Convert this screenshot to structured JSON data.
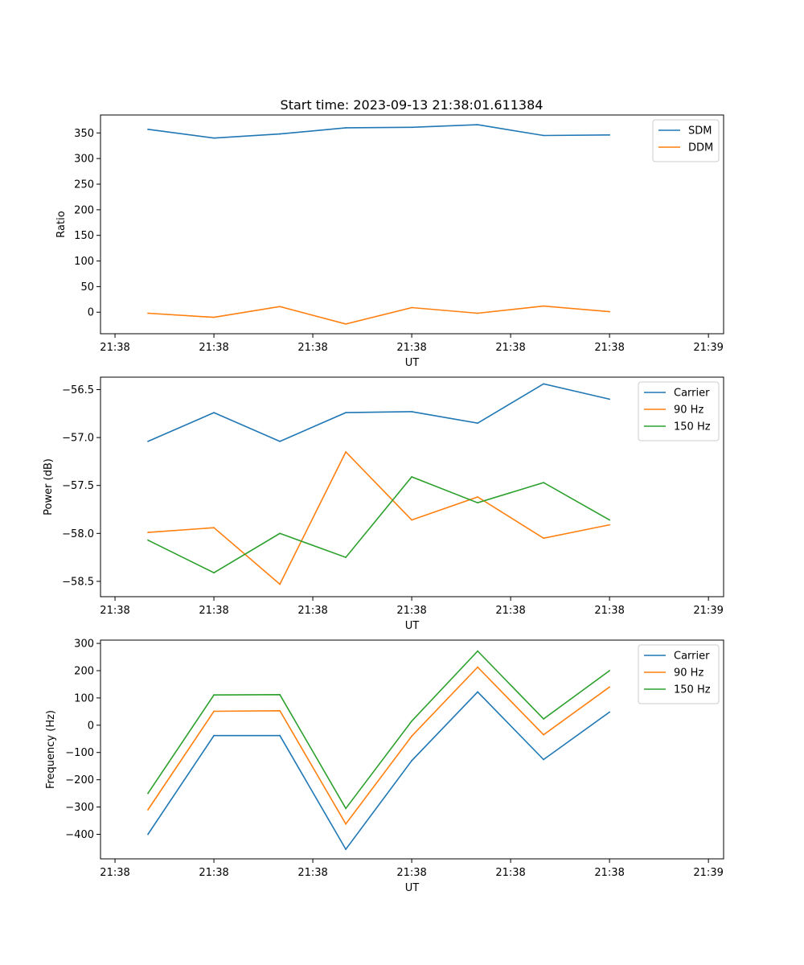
{
  "chart_data": [
    {
      "type": "line",
      "title": "Start time: 2023-09-13 21:38:01.611384",
      "xlabel": "UT",
      "ylabel": "Ratio",
      "x": [
        1,
        2,
        3,
        4,
        5,
        6,
        7,
        8
      ],
      "xlim": [
        0.28,
        9.73
      ],
      "x_ticks": [
        0.5,
        2.0,
        3.5,
        5.0,
        6.5,
        8.0,
        9.5
      ],
      "x_tick_labels": [
        "21:38",
        "21:38",
        "21:38",
        "21:38",
        "21:38",
        "21:38",
        "21:39"
      ],
      "ylim": [
        -42,
        385
      ],
      "y_ticks": [
        0,
        50,
        100,
        150,
        200,
        250,
        300,
        350
      ],
      "y_tick_labels": [
        "0",
        "50",
        "100",
        "150",
        "200",
        "250",
        "300",
        "350"
      ],
      "legend_position": "top-right",
      "series": [
        {
          "name": "SDM",
          "color": "#1f77b4",
          "values": [
            357,
            340,
            348,
            360,
            361,
            366,
            345,
            346
          ]
        },
        {
          "name": "DDM",
          "color": "#ff7f0e",
          "values": [
            -2,
            -10,
            11,
            -23,
            9,
            -2,
            12,
            1
          ]
        }
      ]
    },
    {
      "type": "line",
      "title": "",
      "xlabel": "UT",
      "ylabel": "Power (dB)",
      "x": [
        1,
        2,
        3,
        4,
        5,
        6,
        7,
        8
      ],
      "xlim": [
        0.28,
        9.73
      ],
      "x_ticks": [
        0.5,
        2.0,
        3.5,
        5.0,
        6.5,
        8.0,
        9.5
      ],
      "x_tick_labels": [
        "21:38",
        "21:38",
        "21:38",
        "21:38",
        "21:38",
        "21:38",
        "21:39"
      ],
      "ylim": [
        -58.66,
        -56.37
      ],
      "y_ticks": [
        -58.5,
        -58.0,
        -57.5,
        -57.0,
        -56.5
      ],
      "y_tick_labels": [
        "−58.5",
        "−58.0",
        "−57.5",
        "−57.0",
        "−56.5"
      ],
      "legend_position": "top-right",
      "series": [
        {
          "name": "Carrier",
          "color": "#1f77b4",
          "values": [
            -57.04,
            -56.74,
            -57.04,
            -56.74,
            -56.73,
            -56.85,
            -56.44,
            -56.6
          ]
        },
        {
          "name": "90 Hz",
          "color": "#ff7f0e",
          "values": [
            -57.99,
            -57.94,
            -58.53,
            -57.15,
            -57.86,
            -57.62,
            -58.05,
            -57.91
          ]
        },
        {
          "name": "150 Hz",
          "color": "#2ca02c",
          "values": [
            -58.07,
            -58.41,
            -58.0,
            -58.25,
            -57.41,
            -57.68,
            -57.47,
            -57.86
          ]
        }
      ]
    },
    {
      "type": "line",
      "title": "",
      "xlabel": "UT",
      "ylabel": "Frequency (Hz)",
      "x": [
        1,
        2,
        3,
        4,
        5,
        6,
        7,
        8
      ],
      "xlim": [
        0.28,
        9.73
      ],
      "x_ticks": [
        0.5,
        2.0,
        3.5,
        5.0,
        6.5,
        8.0,
        9.5
      ],
      "x_tick_labels": [
        "21:38",
        "21:38",
        "21:38",
        "21:38",
        "21:38",
        "21:38",
        "21:39"
      ],
      "ylim": [
        -490,
        312
      ],
      "y_ticks": [
        -400,
        -300,
        -200,
        -100,
        0,
        100,
        200,
        300
      ],
      "y_tick_labels": [
        "−400",
        "−300",
        "−200",
        "−100",
        "0",
        "100",
        "200",
        "300"
      ],
      "legend_position": "top-right",
      "series": [
        {
          "name": "Carrier",
          "color": "#1f77b4",
          "values": [
            -400,
            -38,
            -38,
            -455,
            -130,
            122,
            -126,
            48
          ]
        },
        {
          "name": "90 Hz",
          "color": "#ff7f0e",
          "values": [
            -310,
            51,
            53,
            -362,
            -40,
            213,
            -35,
            140
          ]
        },
        {
          "name": "150 Hz",
          "color": "#2ca02c",
          "values": [
            -250,
            111,
            112,
            -305,
            15,
            272,
            23,
            200
          ]
        }
      ]
    }
  ]
}
